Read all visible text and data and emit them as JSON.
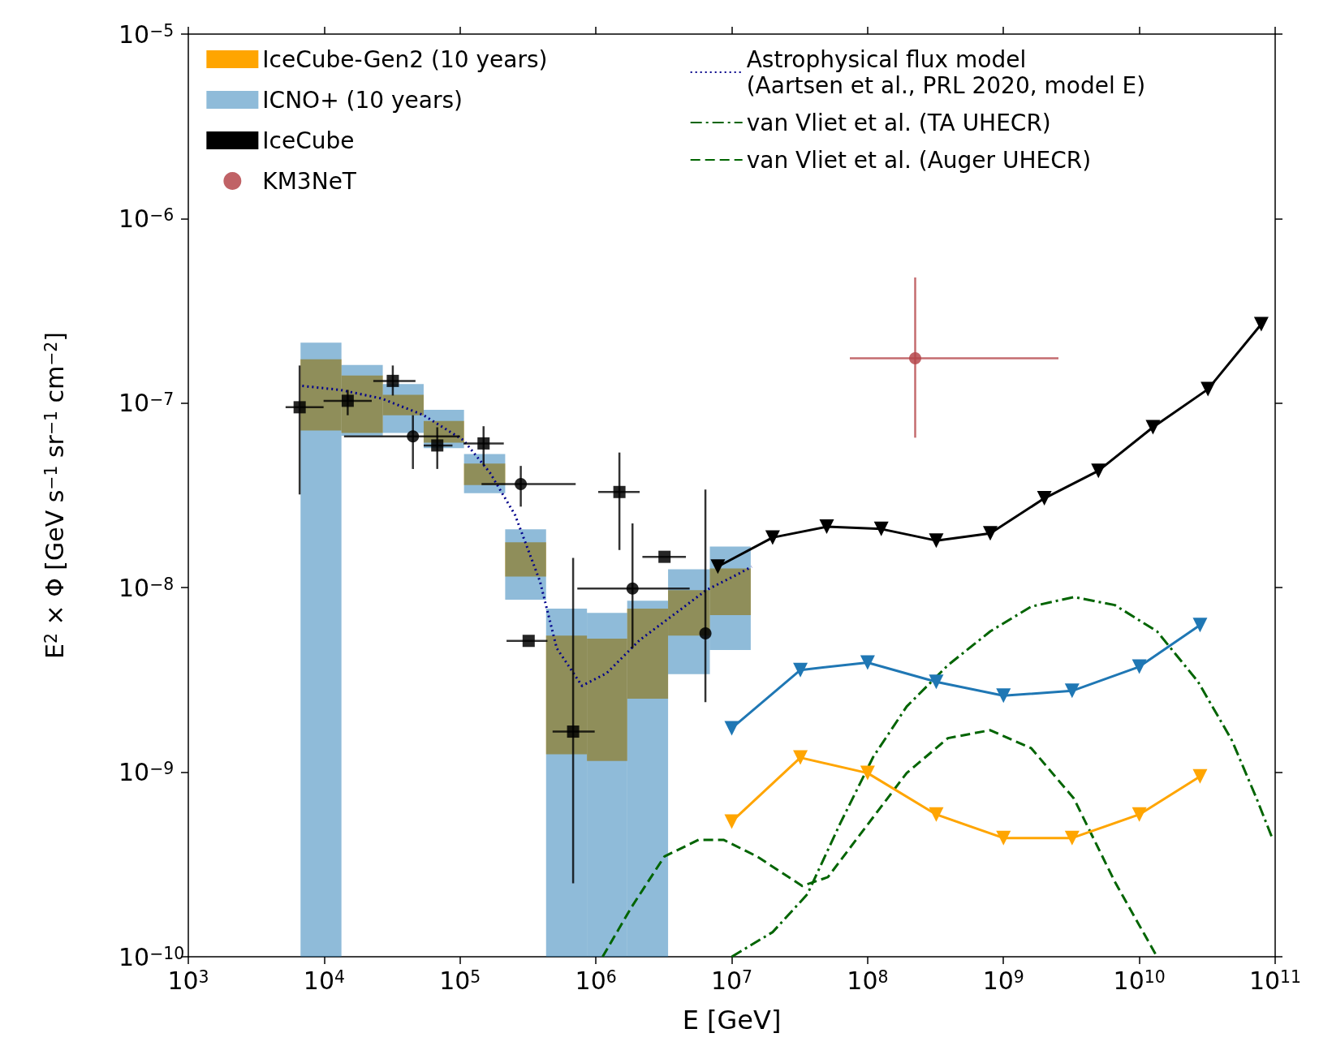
{
  "chart_data": {
    "type": "line",
    "xlabel": "E [GeV]",
    "ylabel": "E$^{2}$ × Φ [GeV s$^{−1}$ sr$^{−1}$ cm$^{−2}$]",
    "log": "xy",
    "grid": false,
    "legend": "top",
    "xlim": [
      1000,
      100000000000
    ],
    "ylim": [
      1e-10,
      1e-05
    ],
    "xticks": [
      {
        "value": 1000,
        "label": "10$^{3}$"
      },
      {
        "value": 10000,
        "label": "10$^{4}$"
      },
      {
        "value": 100000,
        "label": "10$^{5}$"
      },
      {
        "value": 1000000,
        "label": "10$^{6}$"
      },
      {
        "value": 10000000,
        "label": "10$^{7}$"
      },
      {
        "value": 100000000,
        "label": "10$^{8}$"
      },
      {
        "value": 1000000000,
        "label": "10$^{9}$"
      },
      {
        "value": 10000000000,
        "label": "10$^{10}$"
      },
      {
        "value": 100000000000,
        "label": "10$^{11}$"
      }
    ],
    "yticks": [
      {
        "value": 1e-10,
        "label": "10$^{−10}$"
      },
      {
        "value": 1e-09,
        "label": "10$^{−9}$"
      },
      {
        "value": 1e-08,
        "label": "10$^{−8}$"
      },
      {
        "value": 1e-07,
        "label": "10$^{−7}$"
      },
      {
        "value": 1e-06,
        "label": "10$^{−6}$"
      },
      {
        "value": 1e-05,
        "label": "10$^{−5}$"
      }
    ],
    "series": [
      {
        "type": "histogram",
        "name": "IceCube-Gen2 (10 years)",
        "color": "#ffa500",
        "bins": [
          6700,
          13400,
          27000,
          54000,
          107000,
          215000,
          430000,
          860000,
          1700000,
          3400000,
          6900000,
          13800000
        ],
        "base": [
          7.1e-08,
          6.9e-08,
          8.6e-08,
          6.1e-08,
          3.6e-08,
          1.15e-08,
          1.25e-09,
          1.15e-09,
          2.5e-09,
          5.5e-09,
          7.1e-09
        ],
        "values": [
          1.02e-07,
          7.2e-08,
          2.5e-08,
          1.9e-08,
          1.1e-08,
          6.1e-09,
          4.25e-09,
          4.15e-09,
          5.2e-09,
          4.2e-09,
          5.6e-09
        ]
      },
      {
        "type": "histogram",
        "name": "ICNO+ (10 years)",
        "color": "#1f77b4",
        "bins": [
          6700,
          13400,
          27000,
          54000,
          107000,
          215000,
          430000,
          860000,
          1700000,
          3400000,
          6900000,
          13800000
        ],
        "base": [
          1e-10,
          6.65e-08,
          6.9e-08,
          5.7e-08,
          3.25e-08,
          8.6e-09,
          1e-10,
          1e-10,
          1e-10,
          3.4e-09,
          4.6e-09
        ],
        "values": [
          2.129e-07,
          9.45e-08,
          5.8e-08,
          3.5e-08,
          2.05e-08,
          1.21e-08,
          7.6e-09,
          7.2e-09,
          8.4e-09,
          9.2e-09,
          1.21e-08
        ]
      },
      {
        "name": "IceCube",
        "color": "#000000",
        "marker": "triangle",
        "line_style": "solid",
        "x": [
          7900000,
          20000000,
          50000000,
          126000000,
          320000000,
          800000000,
          2000000000,
          5000000000,
          12600000000,
          32000000000,
          79000000000
        ],
        "values": [
          1.3e-08,
          1.87e-08,
          2.14e-08,
          2.08e-08,
          1.8e-08,
          1.97e-08,
          3.05e-08,
          4.3e-08,
          7.4e-08,
          1.19e-07,
          2.68e-07
        ]
      },
      {
        "type": "scatter",
        "name": "KM3NeT",
        "color": "#b5474b",
        "marker": "circle",
        "x": [
          224000000
        ],
        "values": [
          1.75e-07
        ],
        "xerrors": [
          [
            74000000,
            2540000000
          ]
        ],
        "errors": [
          [
            6.5e-08,
            4.8e-07
          ]
        ]
      },
      {
        "name": "Astrophysical flux model\n(Aartsen et al., PRL 2020, model E)",
        "color": "#00008b",
        "marker": "none",
        "line_style": "dotted",
        "x": [
          6900,
          13100,
          26500,
          54000,
          106000,
          166000,
          254000,
          388000,
          515000,
          790000,
          1200000,
          2100000,
          3700000,
          6500000,
          11500000,
          14000000
        ],
        "values": [
          1.24e-07,
          1.18e-07,
          1.06e-07,
          8.6e-08,
          6.3e-08,
          4.2e-08,
          2.48e-08,
          1.08e-08,
          4.7e-09,
          2.94e-09,
          3.44e-09,
          5.2e-09,
          7.1e-09,
          9.7e-09,
          1.2e-08,
          1.3e-08
        ]
      },
      {
        "name": "van Vliet et al. (TA UHECR)",
        "color": "#006400",
        "marker": "none",
        "line_style": "dashdot",
        "x": [
          10000000,
          20000000,
          36000000,
          63000000,
          110000000,
          194000000,
          390000000,
          800000000,
          1600000000,
          3300000000,
          6600000000,
          13500000000,
          27000000000,
          48000000000,
          73000000000,
          94000000000
        ],
        "values": [
          1e-10,
          1.36e-10,
          2.18e-10,
          5.3e-10,
          1.21e-09,
          2.27e-09,
          3.8e-09,
          5.8e-09,
          7.9e-09,
          8.9e-09,
          8.05e-09,
          5.8e-09,
          3.1e-09,
          1.49e-09,
          7.2e-10,
          4.5e-10
        ]
      },
      {
        "name": "van Vliet et al. (Auger UHECR)",
        "color": "#006400",
        "marker": "none",
        "line_style": "dashed",
        "x": [
          1120000,
          1840000,
          3200000,
          5700000,
          8700000,
          15300000,
          33000000,
          51000000,
          96000000,
          194000000,
          390000000,
          800000000,
          1600000000,
          3300000000,
          6600000000,
          13500000000
        ],
        "values": [
          1e-10,
          1.87e-10,
          3.5e-10,
          4.3e-10,
          4.3e-10,
          3.5e-10,
          2.42e-10,
          2.7e-10,
          5e-10,
          9.9e-10,
          1.53e-09,
          1.69e-09,
          1.35e-09,
          7.2e-10,
          2.55e-10,
          1e-10
        ]
      },
      {
        "color": "#1f77b4",
        "marker": "triangle",
        "line_style": "solid",
        "x": [
          10000000,
          32000000,
          100000000,
          320000000,
          1000000000,
          3200000000,
          10000000000,
          28000000000
        ],
        "values": [
          1.73e-09,
          3.58e-09,
          3.93e-09,
          3.09e-09,
          2.6e-09,
          2.76e-09,
          3.73e-09,
          6.28e-09
        ]
      },
      {
        "color": "#ffa500",
        "marker": "triangle",
        "line_style": "solid",
        "x": [
          10000000,
          32000000,
          100000000,
          320000000,
          1000000000,
          3200000000,
          10000000000,
          28000000000
        ],
        "values": [
          5.4e-10,
          1.2e-09,
          9.9e-10,
          5.9e-10,
          4.4e-10,
          4.4e-10,
          5.9e-10,
          9.5e-10
        ]
      },
      {
        "type": "scatter",
        "color": "#000000",
        "marker": "square",
        "x": [
          6600,
          14900,
          32000,
          68000,
          149000,
          320000,
          680000,
          1490000,
          3200000
        ],
        "values": [
          9.5e-08,
          1.03e-07,
          1.32e-07,
          5.9e-08,
          6.05e-08,
          5.15e-09,
          1.66e-09,
          3.3e-08,
          1.47e-08
        ],
        "xerrors": [
          [
            5200,
            9900
          ],
          [
            9900,
            22400
          ],
          [
            23000,
            47000
          ],
          [
            54000,
            88000
          ],
          [
            106000,
            210000
          ],
          [
            220000,
            440000
          ],
          [
            480000,
            980000
          ],
          [
            1040000,
            2100000
          ],
          [
            2200000,
            4600000
          ]
        ],
        "errors": [
          [
            3.2e-08,
            1.6e-07
          ],
          [
            8.6e-08,
            1.18e-07
          ],
          [
            1.1e-07,
            1.6e-07
          ],
          [
            4.4e-08,
            7.4e-08
          ],
          [
            4.6e-08,
            7.5e-08
          ],
          null,
          [
            2.5e-10,
            1.45e-08
          ],
          [
            1.6e-08,
            5.4e-08
          ],
          null
        ]
      },
      {
        "type": "scatter",
        "color": "#000000",
        "marker": "circle",
        "x": [
          45000,
          280000,
          1860000,
          6400000
        ],
        "values": [
          6.6e-08,
          3.64e-08,
          9.9e-09,
          5.65e-09
        ],
        "xerrors": [
          [
            14000,
            100000
          ],
          [
            144000,
            710000
          ],
          [
            730000,
            4900000
          ],
          null
        ],
        "errors": [
          [
            4.4e-08,
            8.6e-08
          ],
          [
            2.75e-08,
            4.57e-08
          ],
          [
            4.7e-09,
            2.23e-08
          ],
          [
            2.4e-09,
            3.4e-08
          ]
        ]
      }
    ]
  }
}
